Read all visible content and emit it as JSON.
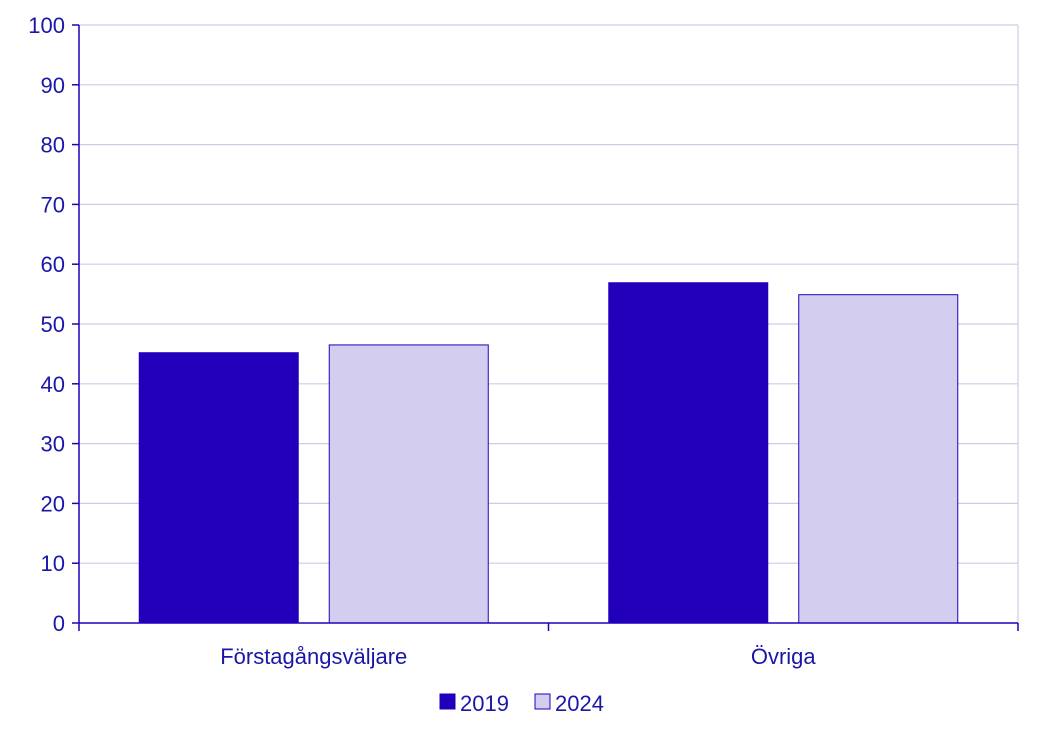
{
  "chart_data": {
    "type": "bar",
    "categories": [
      "Förstagångsväljare",
      "Övriga"
    ],
    "series": [
      {
        "name": "2019",
        "values": [
          45.2,
          56.9
        ],
        "color": "#2200bb"
      },
      {
        "name": "2024",
        "values": [
          46.5,
          54.9
        ],
        "color": "#d3cdf0"
      }
    ],
    "ylim": [
      0,
      100
    ],
    "yticks": [
      0,
      10,
      20,
      30,
      40,
      50,
      60,
      70,
      80,
      90,
      100
    ],
    "grid": true,
    "legend_position": "bottom-center",
    "title": "",
    "xlabel": "",
    "ylabel": ""
  },
  "colors": {
    "text": "#1a17a8",
    "axis": "#2200bb",
    "grid": "#cfcbe6",
    "bar_border": "#2200bb"
  }
}
